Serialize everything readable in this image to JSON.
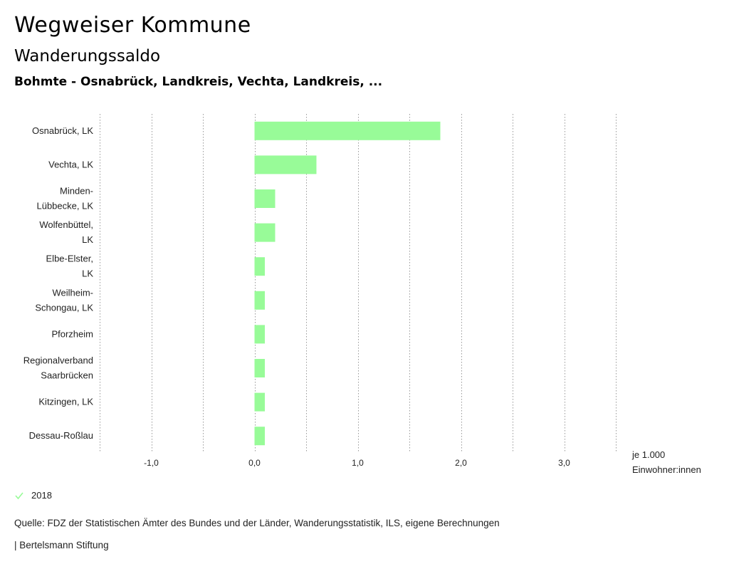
{
  "header": {
    "title": "Wegweiser Kommune",
    "subtitle": "Wanderungssaldo",
    "region": "Bohmte - Osnabrück, Landkreis, Vechta, Landkreis, ..."
  },
  "chart_data": {
    "type": "bar",
    "orientation": "horizontal",
    "categories": [
      [
        "Osnabrück, LK"
      ],
      [
        "Vechta, LK"
      ],
      [
        "Minden-",
        "Lübbecke, LK"
      ],
      [
        "Wolfenbüttel,",
        "LK"
      ],
      [
        "Elbe-Elster,",
        "LK"
      ],
      [
        "Weilheim-",
        "Schongau, LK"
      ],
      [
        "Pforzheim"
      ],
      [
        "Regionalverband",
        "Saarbrücken"
      ],
      [
        "Kitzingen, LK"
      ],
      [
        "Dessau-Roßlau"
      ]
    ],
    "series": [
      {
        "name": "2018",
        "values": [
          1.8,
          0.6,
          0.2,
          0.2,
          0.1,
          0.1,
          0.1,
          0.1,
          0.1,
          0.1
        ]
      }
    ],
    "xlim": [
      -1.5,
      3.5
    ],
    "ticks": [
      {
        "value": -1.0,
        "label": "-1,0"
      },
      {
        "value": 0.0,
        "label": "0,0"
      },
      {
        "value": 1.0,
        "label": "1,0"
      },
      {
        "value": 2.0,
        "label": "2,0"
      },
      {
        "value": 3.0,
        "label": "3,0"
      }
    ],
    "gridlines": [
      -1.5,
      -1.0,
      -0.5,
      0.0,
      0.5,
      1.0,
      1.5,
      2.0,
      2.5,
      3.0,
      3.5
    ],
    "xlabel": [
      "je 1.000",
      "Einwohner:innen"
    ],
    "bar_color": "#98fb98",
    "grid_color": "#999999"
  },
  "legend": {
    "label": "2018",
    "color": "#98fb98"
  },
  "footer": {
    "source": "Quelle: FDZ der Statistischen Ämter des Bundes und der Länder, Wanderungsstatistik, ILS, eigene Berechnungen",
    "credit": "| Bertelsmann Stiftung"
  }
}
